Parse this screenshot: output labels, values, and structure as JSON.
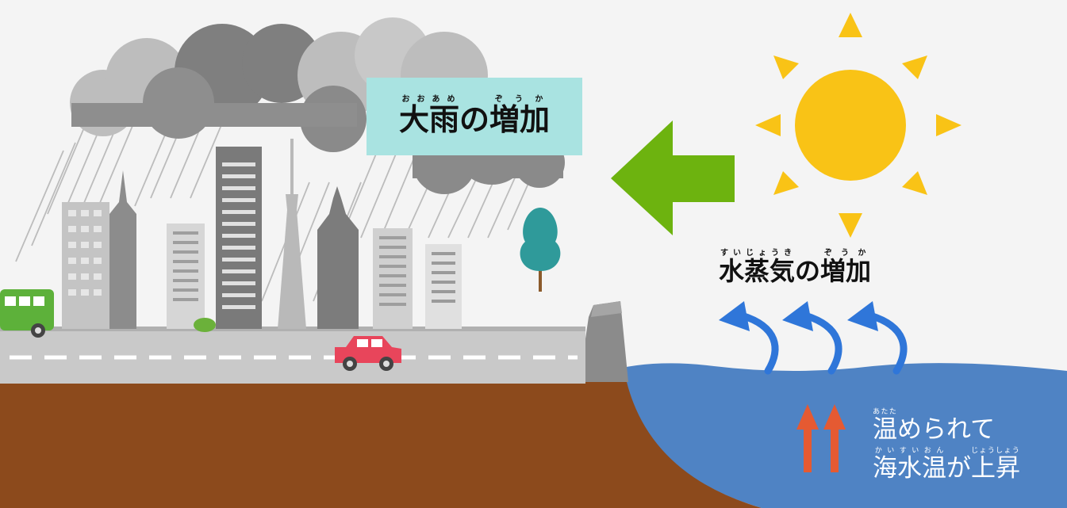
{
  "diagram": {
    "labels": {
      "heavy_rain": {
        "parts": [
          {
            "base": "大雨",
            "ruby": "おおあめ"
          },
          {
            "base": "の",
            "ruby": ""
          },
          {
            "base": "増加",
            "ruby": "ぞうか"
          }
        ]
      },
      "water_vapor": {
        "parts": [
          {
            "base": "水蒸気",
            "ruby": "すいじょうき"
          },
          {
            "base": "の",
            "ruby": ""
          },
          {
            "base": "増加",
            "ruby": "ぞうか"
          }
        ]
      },
      "warming_line1": {
        "parts": [
          {
            "base": "温",
            "ruby": "あたた"
          },
          {
            "base": "められて",
            "ruby": ""
          }
        ]
      },
      "warming_line2": {
        "parts": [
          {
            "base": "海水温",
            "ruby": "かいすいおん"
          },
          {
            "base": "が",
            "ruby": ""
          },
          {
            "base": "上昇",
            "ruby": "じょうしょう"
          }
        ]
      }
    },
    "colors": {
      "sky": "#f4f4f4",
      "label_box": "#a9e3e1",
      "green_arrow": "#6db30f",
      "sun": "#f9c316",
      "sea": "#4f83c4",
      "ground": "#8c4a1c",
      "road": "#c9c9c9",
      "vapor_arrow": "#2f76d9",
      "heat_arrow": "#e55a32",
      "cloud_dark": "#7f7f7f",
      "cloud_light": "#bdbdbd"
    },
    "icons": [
      "sun-icon",
      "cloud-icon",
      "rain-icon",
      "building-icon",
      "tower-icon",
      "tree-icon",
      "bus-icon",
      "car-icon",
      "seawall-icon",
      "arrow-left-icon",
      "arrow-up-icon",
      "curved-arrow-icon"
    ]
  }
}
